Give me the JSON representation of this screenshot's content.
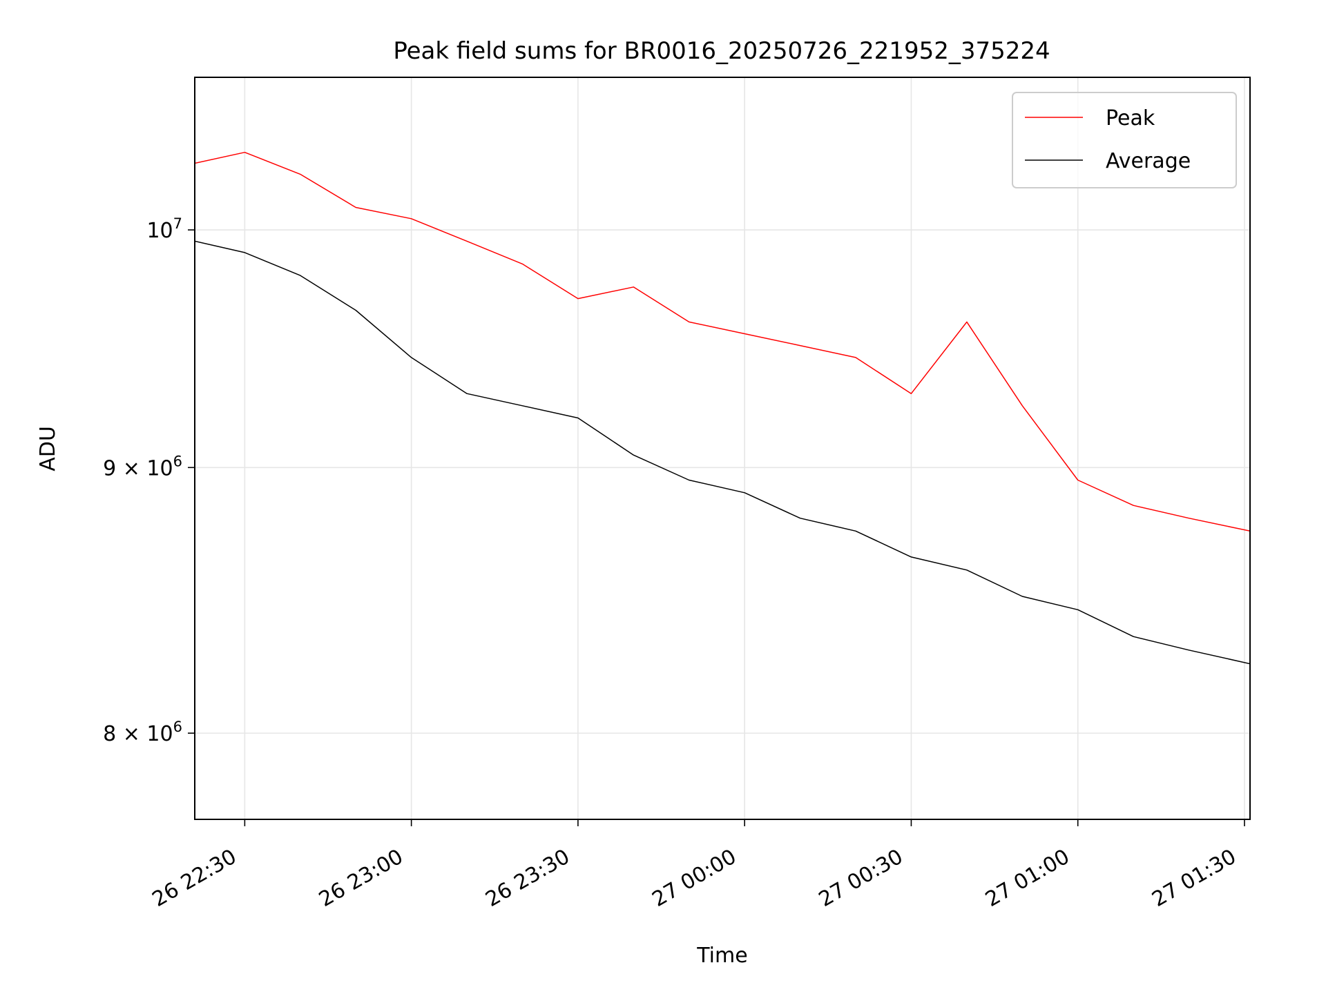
{
  "chart_data": {
    "type": "line",
    "title": "Peak field sums for BR0016_20250726_221952_375224",
    "xlabel": "Time",
    "ylabel": "ADU",
    "xlim": [
      "2025-07-26 22:21",
      "2025-07-27 01:31"
    ],
    "ylim": [
      7700000,
      10700000
    ],
    "yscale": "log",
    "grid": true,
    "legend_position": "top-right",
    "x_ticks": [
      {
        "t": "2025-07-26 22:30",
        "label": "26 22:30"
      },
      {
        "t": "2025-07-26 23:00",
        "label": "26 23:00"
      },
      {
        "t": "2025-07-26 23:30",
        "label": "26 23:30"
      },
      {
        "t": "2025-07-27 00:00",
        "label": "27 00:00"
      },
      {
        "t": "2025-07-27 00:30",
        "label": "27 00:30"
      },
      {
        "t": "2025-07-27 01:00",
        "label": "27 01:00"
      },
      {
        "t": "2025-07-27 01:30",
        "label": "27 01:30"
      }
    ],
    "y_ticks": [
      {
        "value": 10000000,
        "base": "10",
        "exp": "7"
      },
      {
        "value": 9000000,
        "base": "9 × 10",
        "exp": "6"
      },
      {
        "value": 8000000,
        "base": "8 × 10",
        "exp": "6"
      }
    ],
    "series": [
      {
        "name": "Peak",
        "color": "#ff0000",
        "x": [
          "2025-07-26 22:21",
          "2025-07-26 22:30",
          "2025-07-26 22:40",
          "2025-07-26 22:50",
          "2025-07-26 23:00",
          "2025-07-26 23:10",
          "2025-07-26 23:20",
          "2025-07-26 23:30",
          "2025-07-26 23:40",
          "2025-07-26 23:50",
          "2025-07-27 00:00",
          "2025-07-27 00:10",
          "2025-07-27 00:20",
          "2025-07-27 00:30",
          "2025-07-27 00:40",
          "2025-07-27 00:50",
          "2025-07-27 01:00",
          "2025-07-27 01:10",
          "2025-07-27 01:20",
          "2025-07-27 01:31"
        ],
        "values": [
          10300000,
          10350000,
          10250000,
          10100000,
          10050000,
          9950000,
          9850000,
          9700000,
          9750000,
          9600000,
          9550000,
          9500000,
          9450000,
          9300000,
          9600000,
          9250000,
          8950000,
          8850000,
          8800000,
          8750000
        ]
      },
      {
        "name": "Average",
        "color": "#000000",
        "x": [
          "2025-07-26 22:21",
          "2025-07-26 22:30",
          "2025-07-26 22:40",
          "2025-07-26 22:50",
          "2025-07-26 23:00",
          "2025-07-26 23:10",
          "2025-07-26 23:20",
          "2025-07-26 23:30",
          "2025-07-26 23:40",
          "2025-07-26 23:50",
          "2025-07-27 00:00",
          "2025-07-27 00:10",
          "2025-07-27 00:20",
          "2025-07-27 00:30",
          "2025-07-27 00:40",
          "2025-07-27 00:50",
          "2025-07-27 01:00",
          "2025-07-27 01:10",
          "2025-07-27 01:20",
          "2025-07-27 01:31"
        ],
        "values": [
          9950000,
          9900000,
          9800000,
          9650000,
          9450000,
          9300000,
          9250000,
          9200000,
          9050000,
          8950000,
          8900000,
          8800000,
          8750000,
          8650000,
          8600000,
          8500000,
          8450000,
          8350000,
          8300000,
          8250000
        ]
      }
    ]
  }
}
